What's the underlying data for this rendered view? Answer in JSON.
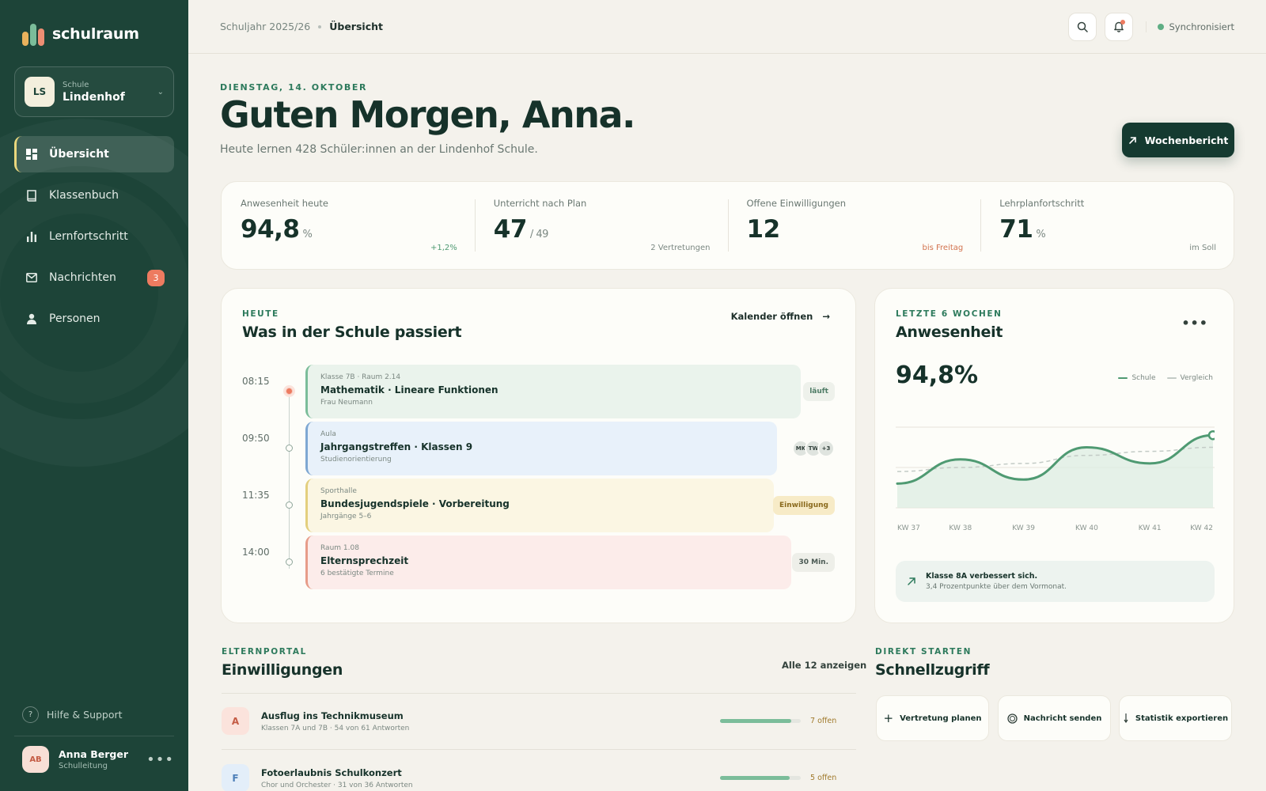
{
  "app": {
    "name": "schulraum"
  },
  "school_switcher": {
    "initials": "LS",
    "label": "Schule",
    "name": "Lindenhof"
  },
  "nav": [
    {
      "label": "Übersicht",
      "icon": "dashboard-icon",
      "active": true
    },
    {
      "label": "Klassenbuch",
      "icon": "book-icon"
    },
    {
      "label": "Lernfortschritt",
      "icon": "bar-chart-icon"
    },
    {
      "label": "Nachrichten",
      "icon": "mail-icon",
      "badge": "3"
    },
    {
      "label": "Personen",
      "icon": "person-icon"
    }
  ],
  "help": {
    "icon_text": "?",
    "label": "Hilfe & Support"
  },
  "user": {
    "initials": "AB",
    "name": "Anna Berger",
    "role": "Schulleitung"
  },
  "breadcrumb": {
    "year": "Schuljahr 2025/26",
    "current": "Übersicht"
  },
  "sync_status": "Synchronisiert",
  "header": {
    "date": "DIENSTAG, 14. OKTOBER",
    "greeting": "Guten Morgen, Anna.",
    "subtitle": "Heute lernen 428 Schüler:innen an der Lindenhof Schule.",
    "report_button": "Wochenbericht"
  },
  "stats": [
    {
      "label": "Anwesenheit heute",
      "value": "94,8",
      "unit": "%",
      "note": "+1,2%",
      "note_color": "#4f9a72"
    },
    {
      "label": "Unterricht nach Plan",
      "value": "47",
      "unit": "/ 49",
      "note": "2 Vertretungen",
      "note_color": "#7b8882"
    },
    {
      "label": "Offene Einwilligungen",
      "value": "12",
      "unit": "",
      "note": "bis Freitag",
      "note_color": "#d2734f"
    },
    {
      "label": "Lehrplanfortschritt",
      "value": "71",
      "unit": "%",
      "note": "im Soll",
      "note_color": "#7b8882"
    }
  ],
  "schedule": {
    "eyebrow": "HEUTE",
    "title": "Was in der Schule passiert",
    "calendar_link": "Kalender öffnen",
    "events": [
      {
        "time": "08:15",
        "meta": "Klasse 7B · Raum 2.14",
        "title": "Mathematik · Lineare Funktionen",
        "sub": "Frau Neumann",
        "tag": "läuft",
        "bg": "#eaf3ec",
        "border": "#7bbd9a",
        "live": true
      },
      {
        "time": "09:50",
        "meta": "Aula",
        "title": "Jahrgangstreffen · Klassen 9",
        "sub": "Studienorientierung",
        "avatars": [
          "MK",
          "TW",
          "+3"
        ],
        "bg": "#e8f1fa",
        "border": "#7ea7d2"
      },
      {
        "time": "11:35",
        "meta": "Sporthalle",
        "title": "Bundesjugendspiele · Vorbereitung",
        "sub": "Jahrgänge 5–6",
        "tag": "Einwilligung",
        "bg": "#fbf6e3",
        "border": "#e3cf7e",
        "tag_bg": "#f7ebc7",
        "tag_color": "#8a6a1d"
      },
      {
        "time": "14:00",
        "meta": "Raum 1.08",
        "title": "Elternsprechzeit",
        "sub": "6 bestätigte Termine",
        "tag": "30 Min.",
        "bg": "#fcecea",
        "border": "#e79c89"
      }
    ]
  },
  "attendance": {
    "eyebrow": "LETZTE 6 WOCHEN",
    "title": "Anwesenheit",
    "value": "94,8%",
    "legend": [
      {
        "label": "Schule",
        "color": "#4f9a72"
      },
      {
        "label": "Vergleich",
        "color": "#c3cbc6"
      }
    ],
    "insight_title": "Klasse 8A verbessert sich.",
    "insight_sub": "3,4 Prozentpunkte über dem Vormonat."
  },
  "chart_data": {
    "type": "line",
    "x": [
      "KW 37",
      "KW 38",
      "KW 39",
      "KW 40",
      "KW 41",
      "KW 42"
    ],
    "grid": true,
    "legend": "top-right",
    "series": [
      {
        "name": "Schule",
        "values": [
          93.6,
          94.2,
          93.7,
          94.5,
          94.1,
          94.8
        ],
        "color": "#4f9a72"
      },
      {
        "name": "Vergleich",
        "values": [
          93.9,
          94.0,
          94.1,
          94.3,
          94.4,
          94.5
        ],
        "color": "#c3cbc6",
        "dashed": true
      }
    ],
    "ylim": [
      93,
      95
    ]
  },
  "consents": {
    "eyebrow": "ELTERNPORTAL",
    "title": "Einwilligungen",
    "show_all": "Alle 12 anzeigen",
    "items": [
      {
        "letter": "A",
        "title": "Ausflug ins Technikmuseum",
        "sub": "Klassen 7A und 7B · 54 von 61 Antworten",
        "progress": 0.885,
        "open": "7 offen",
        "av_bg": "#fbe3dc",
        "av_color": "#c45b44"
      },
      {
        "letter": "F",
        "title": "Fotoerlaubnis Schulkonzert",
        "sub": "Chor und Orchester · 31 von 36 Antworten",
        "progress": 0.86,
        "open": "5 offen",
        "av_bg": "#e3eef9",
        "av_color": "#4d7fb8"
      }
    ]
  },
  "quick": {
    "eyebrow": "DIREKT STARTEN",
    "title": "Schnellzugriff",
    "actions": [
      {
        "label": "Vertretung planen",
        "icon": "plus-icon"
      },
      {
        "label": "Nachricht senden",
        "icon": "message-icon"
      },
      {
        "label": "Statistik exportieren",
        "icon": "export-icon"
      }
    ]
  }
}
